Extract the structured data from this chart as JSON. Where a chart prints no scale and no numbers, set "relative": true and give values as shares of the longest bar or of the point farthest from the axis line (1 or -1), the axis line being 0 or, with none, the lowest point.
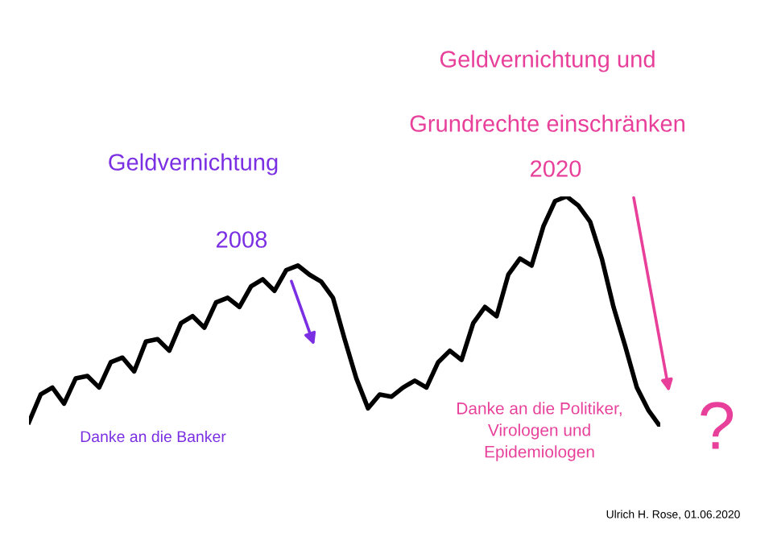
{
  "chart_data": {
    "type": "line",
    "relative": true,
    "categories": [
      null,
      null,
      null,
      null,
      null,
      null,
      null,
      null,
      null,
      null,
      null,
      null,
      null,
      null,
      null,
      null,
      null,
      null,
      null,
      null,
      null,
      null,
      null,
      null,
      null,
      null,
      null,
      null,
      null,
      null,
      null,
      null,
      null,
      null,
      null,
      null,
      null,
      null,
      null,
      null,
      null,
      null,
      null,
      null,
      null,
      null,
      null,
      null,
      null,
      null,
      null,
      null,
      null,
      null,
      null
    ],
    "series": [
      {
        "color": "#000000",
        "values": [
          0.02,
          0.14,
          0.17,
          0.1,
          0.21,
          0.22,
          0.17,
          0.28,
          0.3,
          0.24,
          0.37,
          0.38,
          0.33,
          0.45,
          0.48,
          0.43,
          0.54,
          0.56,
          0.52,
          0.61,
          0.64,
          0.59,
          0.68,
          0.7,
          0.66,
          0.63,
          0.56,
          0.38,
          0.21,
          0.08,
          0.14,
          0.13,
          0.17,
          0.2,
          0.17,
          0.28,
          0.33,
          0.29,
          0.45,
          0.52,
          0.48,
          0.66,
          0.73,
          0.7,
          0.87,
          0.98,
          1.0,
          0.96,
          0.89,
          0.73,
          0.52,
          0.35,
          0.17,
          0.07,
          0.0
        ]
      }
    ],
    "annotations": [
      "Geldvernichtung",
      "2008",
      "Geldvernichtung und",
      "Grundrechte einschränken",
      "2020",
      "Danke an die Banker",
      "Danke an die Politiker,\nVirologen und\nEpidemiologen",
      "?",
      "Ulrich H. Rose, 01.06.2020"
    ],
    "grid": false,
    "legend": false,
    "marker": "none",
    "line_style": "solid"
  }
}
